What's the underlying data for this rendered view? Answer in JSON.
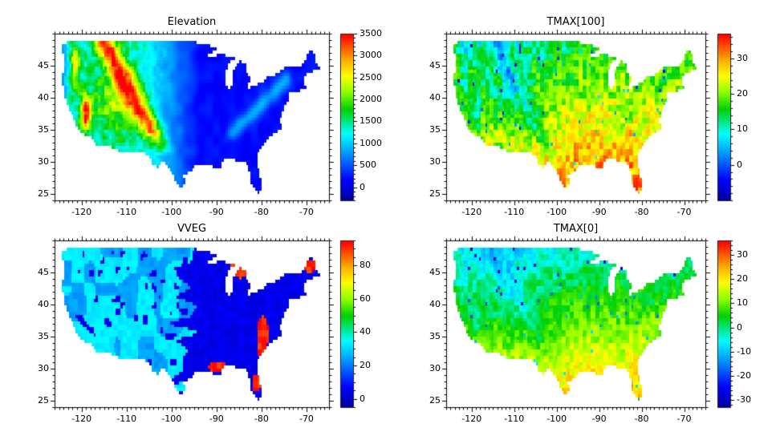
{
  "colors": {
    "background": "#ffffff",
    "frame": "#000000",
    "text": "#000000"
  },
  "colormap": {
    "name": "rainbow-jet",
    "stops": [
      [
        0,
        "#00009c"
      ],
      [
        0.12,
        "#0000ff"
      ],
      [
        0.3,
        "#00a8ff"
      ],
      [
        0.4,
        "#00ffff"
      ],
      [
        0.55,
        "#00d000"
      ],
      [
        0.65,
        "#8cff00"
      ],
      [
        0.75,
        "#ffff00"
      ],
      [
        0.85,
        "#ffa800"
      ],
      [
        1,
        "#ff0000"
      ]
    ]
  },
  "region_outline": {
    "us": [
      [
        -124.7,
        48.4
      ],
      [
        -124.6,
        47.8
      ],
      [
        -124.1,
        46.9
      ],
      [
        -123.9,
        46.0
      ],
      [
        -124.0,
        45.0
      ],
      [
        -124.3,
        43.8
      ],
      [
        -124.4,
        43.0
      ],
      [
        -124.2,
        41.8
      ],
      [
        -124.1,
        40.9
      ],
      [
        -123.7,
        39.7
      ],
      [
        -122.9,
        38.3
      ],
      [
        -122.5,
        37.8
      ],
      [
        -121.9,
        36.9
      ],
      [
        -121.7,
        36.2
      ],
      [
        -120.6,
        34.7
      ],
      [
        -119.6,
        34.4
      ],
      [
        -118.3,
        33.8
      ],
      [
        -117.4,
        33.2
      ],
      [
        -117.1,
        32.5
      ],
      [
        -114.8,
        32.6
      ],
      [
        -111.1,
        31.4
      ],
      [
        -108.2,
        31.4
      ],
      [
        -106.4,
        31.8
      ],
      [
        -104.9,
        30.5
      ],
      [
        -104.0,
        29.4
      ],
      [
        -103.1,
        29.0
      ],
      [
        -102.3,
        29.9
      ],
      [
        -101.4,
        29.8
      ],
      [
        -100.6,
        29.1
      ],
      [
        -99.5,
        27.6
      ],
      [
        -99.1,
        26.4
      ],
      [
        -97.4,
        25.9
      ],
      [
        -97.2,
        26.8
      ],
      [
        -97.3,
        27.8
      ],
      [
        -96.4,
        28.4
      ],
      [
        -95.2,
        29.0
      ],
      [
        -94.0,
        29.7
      ],
      [
        -92.2,
        29.6
      ],
      [
        -91.0,
        29.2
      ],
      [
        -89.4,
        29.0
      ],
      [
        -89.0,
        29.3
      ],
      [
        -89.4,
        30.1
      ],
      [
        -88.0,
        30.3
      ],
      [
        -86.4,
        30.4
      ],
      [
        -85.3,
        29.8
      ],
      [
        -84.2,
        30.1
      ],
      [
        -83.1,
        29.4
      ],
      [
        -82.7,
        28.2
      ],
      [
        -82.6,
        27.3
      ],
      [
        -81.9,
        26.1
      ],
      [
        -81.1,
        25.2
      ],
      [
        -80.4,
        25.2
      ],
      [
        -80.0,
        26.2
      ],
      [
        -80.1,
        27.2
      ],
      [
        -80.6,
        28.5
      ],
      [
        -81.3,
        29.9
      ],
      [
        -81.1,
        31.2
      ],
      [
        -80.2,
        32.2
      ],
      [
        -79.0,
        33.3
      ],
      [
        -77.9,
        34.0
      ],
      [
        -76.8,
        34.7
      ],
      [
        -75.6,
        35.3
      ],
      [
        -75.9,
        36.6
      ],
      [
        -75.6,
        37.6
      ],
      [
        -75.0,
        38.4
      ],
      [
        -74.4,
        39.4
      ],
      [
        -74.0,
        40.2
      ],
      [
        -73.8,
        40.8
      ],
      [
        -72.2,
        41.1
      ],
      [
        -70.4,
        41.6
      ],
      [
        -70.0,
        41.9
      ],
      [
        -70.6,
        42.7
      ],
      [
        -70.7,
        43.2
      ],
      [
        -69.7,
        43.9
      ],
      [
        -68.6,
        44.3
      ],
      [
        -67.0,
        44.7
      ],
      [
        -67.4,
        45.2
      ],
      [
        -67.8,
        45.8
      ],
      [
        -67.8,
        47.0
      ],
      [
        -68.5,
        47.3
      ],
      [
        -69.2,
        47.4
      ],
      [
        -70.0,
        46.6
      ],
      [
        -70.7,
        45.6
      ],
      [
        -71.6,
        45.0
      ],
      [
        -74.8,
        45.0
      ],
      [
        -76.4,
        44.1
      ],
      [
        -76.9,
        43.6
      ],
      [
        -78.8,
        43.6
      ],
      [
        -79.2,
        43.4
      ],
      [
        -79.0,
        42.9
      ],
      [
        -80.2,
        42.4
      ],
      [
        -81.5,
        42.1
      ],
      [
        -82.7,
        41.7
      ],
      [
        -83.5,
        41.8
      ],
      [
        -83.1,
        42.3
      ],
      [
        -82.5,
        42.7
      ],
      [
        -82.4,
        43.2
      ],
      [
        -83.3,
        44.3
      ],
      [
        -83.3,
        45.0
      ],
      [
        -84.0,
        45.7
      ],
      [
        -84.7,
        45.8
      ],
      [
        -85.4,
        46.1
      ],
      [
        -86.6,
        46.4
      ],
      [
        -87.4,
        46.5
      ],
      [
        -88.2,
        46.9
      ],
      [
        -89.8,
        46.8
      ],
      [
        -90.7,
        46.6
      ],
      [
        -92.1,
        46.7
      ],
      [
        -90.5,
        47.5
      ],
      [
        -89.6,
        48.0
      ],
      [
        -91.0,
        48.1
      ],
      [
        -92.3,
        48.4
      ],
      [
        -93.8,
        48.6
      ],
      [
        -94.6,
        48.7
      ],
      [
        -95.2,
        49.0
      ],
      [
        -123.1,
        49.0
      ],
      [
        -123.2,
        48.8
      ]
    ],
    "lakes": [
      [
        [
          -87.6,
          41.7
        ],
        [
          -86.6,
          41.8
        ],
        [
          -86.2,
          42.9
        ],
        [
          -86.5,
          44.1
        ],
        [
          -85.6,
          45.0
        ],
        [
          -85.2,
          45.8
        ],
        [
          -86.7,
          45.8
        ],
        [
          -87.3,
          45.3
        ],
        [
          -87.9,
          44.4
        ],
        [
          -87.8,
          43.2
        ],
        [
          -87.8,
          42.2
        ]
      ]
    ]
  },
  "chart_data": [
    {
      "type": "heatmap",
      "title": "Elevation",
      "field": "elevation",
      "xlim": [
        -126,
        -65
      ],
      "ylim": [
        24,
        50
      ],
      "x_ticks": [
        -120,
        -110,
        -100,
        -90,
        -80,
        -70
      ],
      "y_ticks": [
        25,
        30,
        35,
        40,
        45
      ],
      "minor_tick_step": 1,
      "grid_step": 0.5,
      "colorbar": {
        "range": [
          -300,
          3500
        ],
        "ticks": [
          0,
          500,
          1000,
          1500,
          2000,
          2500,
          3000,
          3500
        ],
        "minor_step": 100
      },
      "legend_position": "right",
      "pattern": "Gridded elevation over the continental US: 2000-3500 (yellow/orange/red) over the Rockies and Sierra Nevada, 1000-2000 (green/cyan) across the intermountain west, under 500 (dark blue) over the Great Plains and the eastern half, with a narrow cyan Appalachian band in the east."
    },
    {
      "type": "heatmap",
      "title": "TMAX[100]",
      "field": "tmax100",
      "xlim": [
        -126,
        -65
      ],
      "ylim": [
        24,
        50
      ],
      "x_ticks": [
        -120,
        -110,
        -100,
        -90,
        -80,
        -70
      ],
      "y_ticks": [
        25,
        30,
        35,
        40,
        45
      ],
      "minor_tick_step": 1,
      "grid_step": 0.5,
      "colorbar": {
        "range": [
          -10,
          37
        ],
        "ticks": [
          0,
          10,
          20,
          30
        ],
        "minor_step": 2
      },
      "legend_position": "right",
      "pattern": "Maximum temperature at time 100: 30-35 (orange/red) over Texas and the Gulf states, 15-25 (green/yellow) to the north, cooler cyan cells over the high Rockies; strong grid-cell speckle with a few isolated blue dots."
    },
    {
      "type": "heatmap",
      "title": "VVEG",
      "field": "vveg",
      "xlim": [
        -126,
        -65
      ],
      "ylim": [
        24,
        50
      ],
      "x_ticks": [
        -120,
        -110,
        -100,
        -90,
        -80,
        -70
      ],
      "y_ticks": [
        25,
        30,
        35,
        40,
        45
      ],
      "minor_tick_step": 1,
      "grid_step": 0.5,
      "colorbar": {
        "range": [
          -5,
          95
        ],
        "ticks": [
          0,
          20,
          40,
          60,
          80
        ],
        "minor_step": 5
      },
      "legend_position": "right",
      "pattern": "Vegetation type index: low values (royal blue) over the eastern half and scattered western cells, 20-35 (light blue / cyan patches) over the west, and high values near 90 (red) around the upper Great Lakes, an eastern band near -80 longitude into Florida, the central Gulf coast and northern Maine."
    },
    {
      "type": "heatmap",
      "title": "TMAX[0]",
      "field": "tmax0",
      "xlim": [
        -126,
        -65
      ],
      "ylim": [
        24,
        50
      ],
      "x_ticks": [
        -120,
        -110,
        -100,
        -90,
        -80,
        -70
      ],
      "y_ticks": [
        25,
        30,
        35,
        40,
        45
      ],
      "minor_tick_step": 1,
      "grid_step": 0.5,
      "colorbar": {
        "range": [
          -33,
          36
        ],
        "ticks": [
          -30,
          -20,
          -10,
          0,
          10,
          20,
          30
        ],
        "minor_step": 2
      },
      "legend_position": "right",
      "pattern": "Maximum temperature at time 0: 20-30 (orange) in south Texas, the Gulf coast and Florida, 10-20 (yellow-green) across the south, 0-10 (green) over most of the interior, with cyan/blue cells over the mountains and north; speckled grid cells."
    }
  ]
}
